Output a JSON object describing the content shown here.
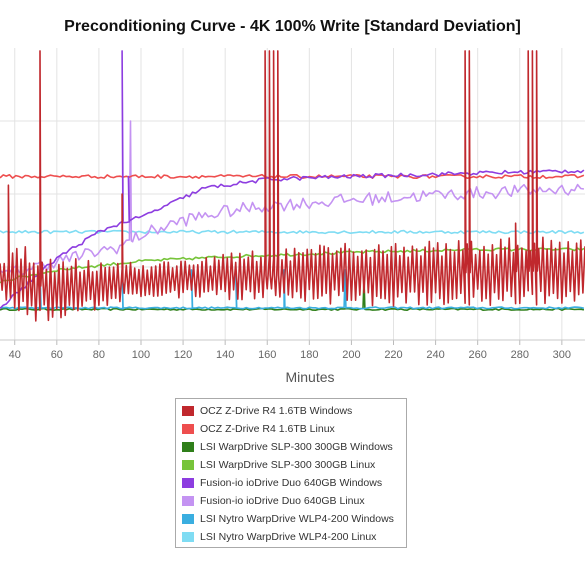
{
  "chart_data": {
    "type": "line",
    "title": "Preconditioning Curve - 4K 100% Write [Standard Deviation]",
    "xlabel": "Minutes",
    "ylabel": "",
    "x_ticks": [
      40,
      60,
      80,
      100,
      120,
      140,
      160,
      180,
      200,
      220,
      240,
      260,
      280,
      300
    ],
    "xlim": [
      33,
      311
    ],
    "ylim": [
      0,
      100
    ],
    "grid": true,
    "legend_position": "bottom-center",
    "series": [
      {
        "name": "OCZ Z-Drive R4 1.6TB Windows",
        "color": "#c0282d",
        "style": "oscillating",
        "base": [
          [
            33,
            22
          ],
          [
            60,
            17
          ],
          [
            90,
            20
          ],
          [
            150,
            22
          ],
          [
            250,
            23
          ],
          [
            311,
            24
          ]
        ],
        "amplitude": [
          [
            33,
            5
          ],
          [
            45,
            11
          ],
          [
            100,
            5
          ],
          [
            200,
            9
          ],
          [
            311,
            10
          ]
        ],
        "spikes": [
          [
            37,
            53
          ],
          [
            52,
            99
          ],
          [
            91,
            50
          ],
          [
            159,
            99
          ],
          [
            161,
            99
          ],
          [
            163,
            99
          ],
          [
            165,
            99
          ],
          [
            254,
            99
          ],
          [
            256,
            99
          ],
          [
            278,
            40
          ],
          [
            284,
            99
          ],
          [
            286,
            99
          ],
          [
            288,
            99
          ]
        ]
      },
      {
        "name": "OCZ Z-Drive R4 1.6TB Linux",
        "color": "#ee4e4e",
        "style": "noisy",
        "base": [
          [
            33,
            56
          ],
          [
            311,
            56
          ]
        ],
        "noise": 0.6
      },
      {
        "name": "LSI WarpDrive SLP-300 300GB Windows",
        "color": "#2f7f1a",
        "style": "noisy",
        "base": [
          [
            33,
            10.5
          ],
          [
            311,
            10.5
          ]
        ],
        "noise": 0.3,
        "spikes": [
          [
            206,
            21
          ]
        ]
      },
      {
        "name": "LSI WarpDrive SLP-300 300GB Linux",
        "color": "#77c43a",
        "style": "noisy",
        "base": [
          [
            33,
            20
          ],
          [
            60,
            24
          ],
          [
            100,
            27
          ],
          [
            140,
            28.5
          ],
          [
            200,
            30
          ],
          [
            260,
            31
          ],
          [
            311,
            31
          ]
        ],
        "noise": 0.5
      },
      {
        "name": "Fusion-io ioDrive Duo 640GB Windows",
        "color": "#8d3de0",
        "style": "noisy",
        "base": [
          [
            33,
            11
          ],
          [
            60,
            28
          ],
          [
            80,
            37
          ],
          [
            90,
            40
          ],
          [
            100,
            42
          ],
          [
            130,
            52
          ],
          [
            160,
            55
          ],
          [
            200,
            56
          ],
          [
            250,
            57
          ],
          [
            311,
            58
          ]
        ],
        "noise": 0.7,
        "spikes": [
          [
            91,
            99
          ],
          [
            94,
            56
          ]
        ]
      },
      {
        "name": "Fusion-io ioDrive Duo 640GB Linux",
        "color": "#c493f2",
        "style": "noisy",
        "base": [
          [
            33,
            22
          ],
          [
            60,
            27
          ],
          [
            90,
            32
          ],
          [
            100,
            36
          ],
          [
            120,
            41
          ],
          [
            140,
            44
          ],
          [
            160,
            46
          ],
          [
            200,
            48
          ],
          [
            250,
            50
          ],
          [
            311,
            52
          ]
        ],
        "noise": 2.2,
        "spikes": [
          [
            95,
            75
          ]
        ]
      },
      {
        "name": "LSI Nytro WarpDrive WLP4-200 Windows",
        "color": "#3aaee0",
        "style": "noisy",
        "base": [
          [
            33,
            11
          ],
          [
            311,
            11
          ]
        ],
        "noise": 0.3,
        "spikes": [
          [
            52,
            24
          ],
          [
            91,
            24
          ],
          [
            124,
            24
          ],
          [
            145,
            24
          ],
          [
            168,
            24
          ],
          [
            197,
            24
          ]
        ]
      },
      {
        "name": "LSI Nytro WarpDrive WLP4-200 Linux",
        "color": "#7fdcf3",
        "style": "noisy",
        "base": [
          [
            33,
            37
          ],
          [
            311,
            37
          ]
        ],
        "noise": 0.5
      }
    ]
  }
}
